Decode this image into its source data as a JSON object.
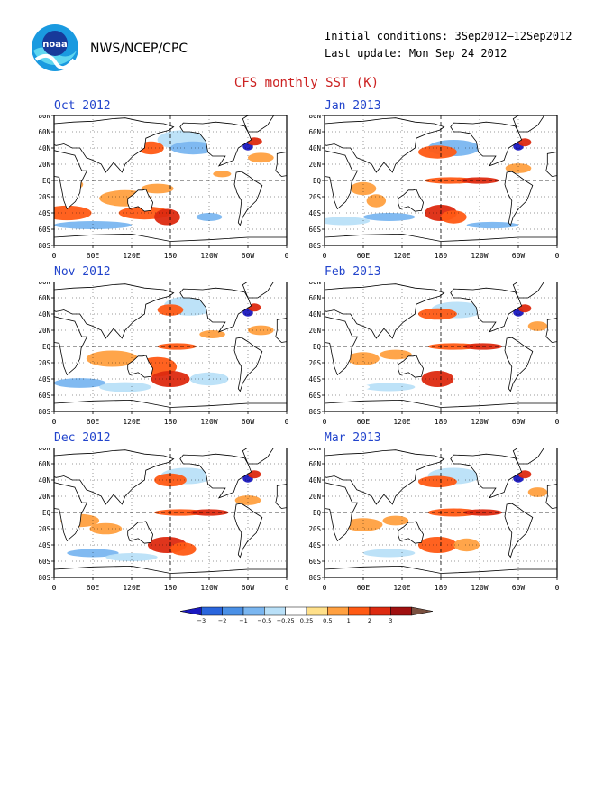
{
  "header": {
    "logo_text": "noaa",
    "agency": "NWS/NCEP/CPC",
    "initial_conditions": "Initial conditions: 3Sep2012–12Sep2012",
    "last_update": "Last update: Mon Sep 24 2012",
    "title": "CFS monthly SST (K)"
  },
  "axes": {
    "lat_ticks": [
      "80N",
      "60N",
      "40N",
      "20N",
      "EQ",
      "20S",
      "40S",
      "60S",
      "80S"
    ],
    "lon_ticks": [
      "0",
      "60E",
      "120E",
      "180",
      "120W",
      "60W",
      "0"
    ]
  },
  "panels": [
    {
      "title": "Oct 2012"
    },
    {
      "title": "Jan 2013"
    },
    {
      "title": "Nov 2012"
    },
    {
      "title": "Feb 2013"
    },
    {
      "title": "Dec 2012"
    },
    {
      "title": "Mar 2013"
    }
  ],
  "colorbar": {
    "labels": [
      "−3",
      "−2",
      "−1",
      "−0.5",
      "−0.25",
      "0.25",
      "0.5",
      "1",
      "2",
      "3"
    ],
    "colors": [
      "#1a18c0",
      "#2a66dd",
      "#4a90e6",
      "#7ab6f0",
      "#b9e0f8",
      "#ffffff",
      "#ffe08a",
      "#ffa040",
      "#ff5a14",
      "#dd2a10",
      "#a01010",
      "#7a5040"
    ]
  }
}
